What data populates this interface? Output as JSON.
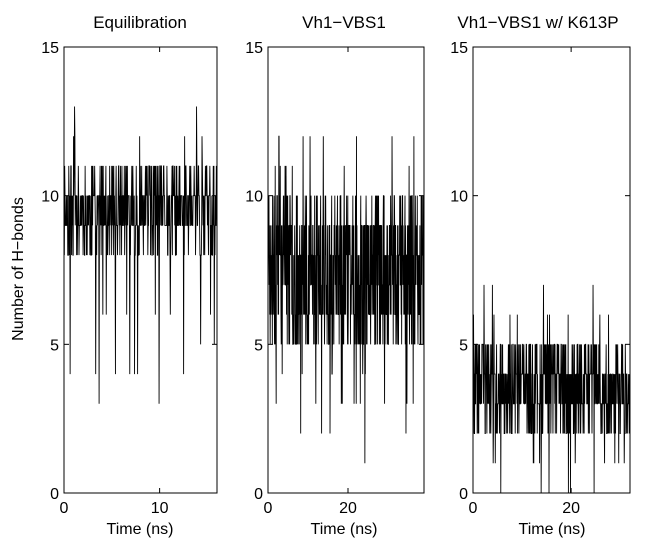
{
  "figure": {
    "ylabel": "Number of H−bonds",
    "line_color": "#000000"
  },
  "chart_data": [
    {
      "type": "line",
      "title": "Equilibration",
      "xlabel": "Time (ns)",
      "ylabel": "Number of H−bonds",
      "xlim": [
        0,
        16
      ],
      "ylim": [
        0,
        15
      ],
      "xticks": [
        0,
        10
      ],
      "yticks": [
        0,
        5,
        10,
        15
      ],
      "grid": false,
      "seed": 11,
      "n_points": 450,
      "series": [
        {
          "x_range": [
            0,
            16
          ],
          "mean": 9.5,
          "typical_range": [
            8,
            11
          ],
          "observed_min": 3,
          "observed_max": 13
        }
      ]
    },
    {
      "type": "line",
      "title": "Vh1−VBS1",
      "xlabel": "Time (ns)",
      "ylabel": "",
      "xlim": [
        0,
        39
      ],
      "ylim": [
        0,
        15
      ],
      "xticks": [
        0,
        20
      ],
      "yticks": [
        0,
        5,
        10,
        15
      ],
      "grid": false,
      "seed": 23,
      "n_points": 650,
      "series": [
        {
          "x_range": [
            0,
            39
          ],
          "mean": 7.3,
          "typical_range": [
            5,
            10
          ],
          "observed_min": 1,
          "observed_max": 12
        }
      ]
    },
    {
      "type": "line",
      "title": "Vh1−VBS1 w/ K613P",
      "xlabel": "Time (ns)",
      "ylabel": "",
      "xlim": [
        0,
        32
      ],
      "ylim": [
        0,
        15
      ],
      "xticks": [
        0,
        20
      ],
      "yticks": [
        0,
        5,
        10,
        15
      ],
      "grid": false,
      "seed": 37,
      "n_points": 600,
      "series": [
        {
          "x_range": [
            0,
            32
          ],
          "mean": 3.5,
          "typical_range": [
            2,
            5
          ],
          "observed_min": 0,
          "observed_max": 7
        }
      ]
    }
  ]
}
